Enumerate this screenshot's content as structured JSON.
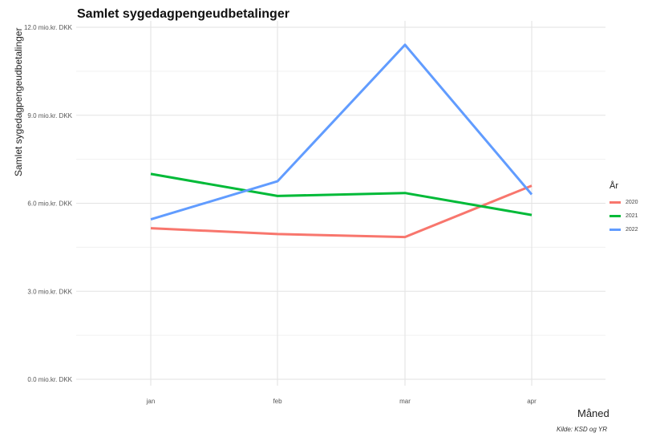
{
  "chart_data": {
    "type": "line",
    "title": "Samlet sygedagpengeudbetalinger",
    "xlabel": "Måned",
    "ylabel": "Samlet sygedagpengeudbetalinger",
    "categories": [
      "jan",
      "feb",
      "mar",
      "apr"
    ],
    "ylim": [
      0,
      12
    ],
    "yticks": [
      0,
      3,
      6,
      9,
      12
    ],
    "ytick_labels": [
      "0.0 mio.kr. DKK",
      "3.0 mio.kr. DKK",
      "6.0 mio.kr. DKK",
      "9.0 mio.kr. DKK",
      "12.0 mio.kr. DKK"
    ],
    "grid": true,
    "legend_title": "År",
    "legend_position": "right",
    "caption": "Kilde: KSD og YR",
    "series": [
      {
        "name": "2020",
        "color": "#F8766D",
        "values": [
          5.15,
          4.95,
          4.85,
          6.6
        ]
      },
      {
        "name": "2021",
        "color": "#00BA38",
        "values": [
          7.0,
          6.25,
          6.35,
          5.6
        ]
      },
      {
        "name": "2022",
        "color": "#619CFF",
        "values": [
          5.45,
          6.75,
          11.4,
          6.3
        ]
      }
    ]
  }
}
